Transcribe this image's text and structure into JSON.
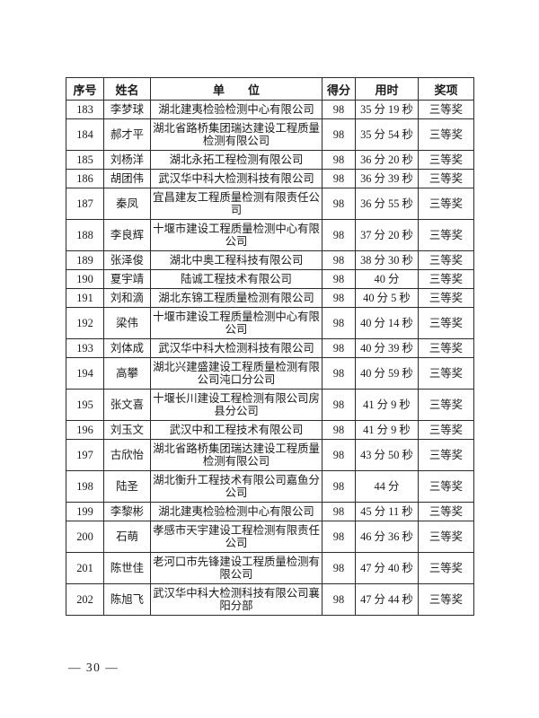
{
  "page": {
    "footer": "— 30 —"
  },
  "table": {
    "columns": [
      "序号",
      "姓名",
      "单　　位",
      "得分",
      "用时",
      "奖项"
    ],
    "rows": [
      {
        "seq": "183",
        "name": "李梦球",
        "unit": "湖北建夷检验检测中心有限公司",
        "score": "98",
        "time": "35 分 19 秒",
        "award": "三等奖"
      },
      {
        "seq": "184",
        "name": "郝才平",
        "unit": "湖北省路桥集团瑞达建设工程质量检测有限公司",
        "score": "98",
        "time": "35 分 54 秒",
        "award": "三等奖"
      },
      {
        "seq": "185",
        "name": "刘杨洋",
        "unit": "湖北永拓工程检测有限公司",
        "score": "98",
        "time": "36 分 20 秒",
        "award": "三等奖"
      },
      {
        "seq": "186",
        "name": "胡团伟",
        "unit": "武汉华中科大检测科技有限公司",
        "score": "98",
        "time": "36 分 39 秒",
        "award": "三等奖"
      },
      {
        "seq": "187",
        "name": "秦凤",
        "unit": "宜昌建友工程质量检测有限责任公司",
        "score": "98",
        "time": "36 分 55 秒",
        "award": "三等奖"
      },
      {
        "seq": "188",
        "name": "李良辉",
        "unit": "十堰市建设工程质量检测中心有限公司",
        "score": "98",
        "time": "37 分 20 秒",
        "award": "三等奖"
      },
      {
        "seq": "189",
        "name": "张泽俊",
        "unit": "湖北中奥工程科技有限公司",
        "score": "98",
        "time": "38 分 30 秒",
        "award": "三等奖"
      },
      {
        "seq": "190",
        "name": "夏宇靖",
        "unit": "陆诚工程技术有限公司",
        "score": "98",
        "time": "40 分",
        "award": "三等奖"
      },
      {
        "seq": "191",
        "name": "刘和滴",
        "unit": "湖北东锦工程质量检测有限公司",
        "score": "98",
        "time": "40 分 5 秒",
        "award": "三等奖"
      },
      {
        "seq": "192",
        "name": "梁伟",
        "unit": "十堰市建设工程质量检测中心有限公司",
        "score": "98",
        "time": "40 分 14 秒",
        "award": "三等奖"
      },
      {
        "seq": "193",
        "name": "刘体成",
        "unit": "武汉华中科大检测科技有限公司",
        "score": "98",
        "time": "40 分 39 秒",
        "award": "三等奖"
      },
      {
        "seq": "194",
        "name": "高攀",
        "unit": "湖北兴建盛建设工程质量检测有限公司沌口分公司",
        "score": "98",
        "time": "40 分 59 秒",
        "award": "三等奖"
      },
      {
        "seq": "195",
        "name": "张文喜",
        "unit": "十堰长川建设工程检测有限公司房县分公司",
        "score": "98",
        "time": "41 分 9 秒",
        "award": "三等奖"
      },
      {
        "seq": "196",
        "name": "刘玉文",
        "unit": "武汉中和工程技术有限公司",
        "score": "98",
        "time": "41 分 9 秒",
        "award": "三等奖"
      },
      {
        "seq": "197",
        "name": "古欣怡",
        "unit": "湖北省路桥集团瑞达建设工程质量检测有限公司",
        "score": "98",
        "time": "43 分 50 秒",
        "award": "三等奖"
      },
      {
        "seq": "198",
        "name": "陆圣",
        "unit": "湖北衡升工程技术有限公司嘉鱼分公司",
        "score": "98",
        "time": "44 分",
        "award": "三等奖"
      },
      {
        "seq": "199",
        "name": "李黎彬",
        "unit": "湖北建夷检验检测中心有限公司",
        "score": "98",
        "time": "45 分 11 秒",
        "award": "三等奖"
      },
      {
        "seq": "200",
        "name": "石萌",
        "unit": "孝感市天宇建设工程检测有限责任公司",
        "score": "98",
        "time": "46 分 36 秒",
        "award": "三等奖"
      },
      {
        "seq": "201",
        "name": "陈世佳",
        "unit": "老河口市先锋建设工程质量检测有限公司",
        "score": "98",
        "time": "47 分 40 秒",
        "award": "三等奖"
      },
      {
        "seq": "202",
        "name": "陈旭飞",
        "unit": "武汉华中科大检测科技有限公司襄阳分部",
        "score": "98",
        "time": "47 分 44 秒",
        "award": "三等奖"
      }
    ]
  }
}
